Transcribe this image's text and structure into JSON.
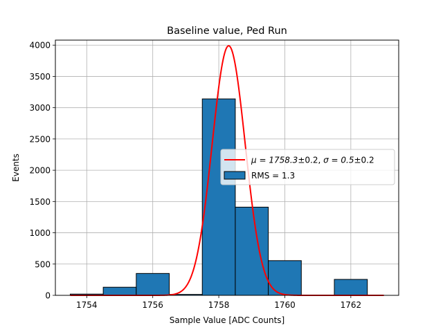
{
  "chart_data": {
    "type": "bar",
    "title": "Baseline value, Ped Run",
    "xlabel": "Sample Value [ADC Counts]",
    "ylabel": "Events",
    "xlim": [
      1753.05,
      1763.45
    ],
    "ylim": [
      0,
      4080
    ],
    "xticks": [
      1754,
      1756,
      1758,
      1760,
      1762
    ],
    "yticks": [
      0,
      500,
      1000,
      1500,
      2000,
      2500,
      3000,
      3500,
      4000
    ],
    "grid": true,
    "legend_position": "right",
    "histogram": {
      "name": "RMS = 1.3",
      "color": "#1f77b4",
      "bin_edges": [
        1753.5,
        1754.5,
        1755.5,
        1756.5,
        1757.5,
        1758.5,
        1759.5,
        1760.5,
        1761.5,
        1762.5
      ],
      "counts": [
        20,
        130,
        350,
        15,
        3140,
        1410,
        555,
        0,
        255
      ]
    },
    "fit": {
      "name": "$\\mu = 1758.3$±0.2, $\\sigma = 0.5$±0.2",
      "color": "#ff0000",
      "function": "gaussian",
      "amplitude": 3990,
      "mu": 1758.3,
      "sigma": 0.5,
      "x_range": [
        1753.5,
        1763
      ]
    },
    "legend": [
      {
        "kind": "line",
        "math": "μ = 1758.3",
        "rest": "±0.2, ",
        "math2": "σ = 0.5",
        "rest2": "±0.2"
      },
      {
        "kind": "patch",
        "label": "RMS = 1.3"
      }
    ]
  }
}
